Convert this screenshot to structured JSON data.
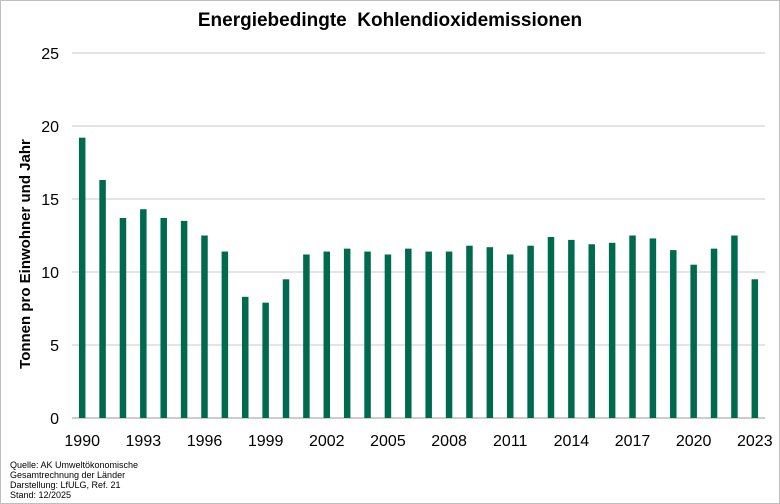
{
  "chart_data": {
    "type": "bar",
    "title": "Energiebedingte  Kohlendioxidemissionen",
    "ylabel": "Tonnen pro Einwohner und Jahr",
    "xlabel": "",
    "ylim": [
      0,
      25
    ],
    "yticks": [
      "0",
      "5",
      "10",
      "15",
      "20",
      "25"
    ],
    "grid": true,
    "legend": "none",
    "bar_color": "#006a4e",
    "grid_color": "#c8c8c8",
    "categories": [
      "1990",
      "1991",
      "1992",
      "1993",
      "1994",
      "1995",
      "1996",
      "1997",
      "1998",
      "1999",
      "2000",
      "2001",
      "2002",
      "2003",
      "2004",
      "2005",
      "2006",
      "2007",
      "2008",
      "2009",
      "2010",
      "2011",
      "2012",
      "2013",
      "2014",
      "2015",
      "2016",
      "2017",
      "2018",
      "2019",
      "2020",
      "2021",
      "2022",
      "2023"
    ],
    "x_tick_labels": [
      "1990",
      "1993",
      "1996",
      "1999",
      "2002",
      "2005",
      "2008",
      "2011",
      "2014",
      "2017",
      "2020",
      "2023"
    ],
    "values": [
      19.2,
      16.3,
      13.7,
      14.3,
      13.7,
      13.5,
      12.5,
      11.4,
      8.3,
      7.9,
      9.5,
      11.2,
      11.4,
      11.6,
      11.4,
      11.2,
      11.6,
      11.4,
      11.4,
      11.8,
      11.7,
      11.2,
      11.8,
      12.4,
      12.2,
      11.9,
      12.0,
      12.5,
      12.3,
      11.5,
      10.5,
      11.6,
      12.5,
      9.5
    ]
  },
  "source": {
    "lines": [
      "Quelle:  AK Umweltökonomische",
      "Gesamtrechnung  der Länder",
      "Darstellung:  LfULG, Ref. 21",
      "Stand:  12/2025"
    ]
  }
}
